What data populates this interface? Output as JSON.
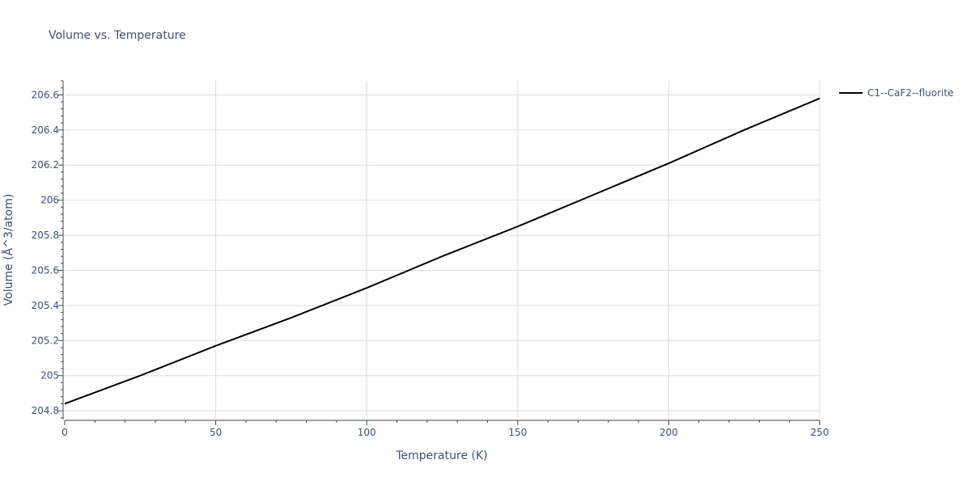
{
  "chart_data": {
    "type": "line",
    "title": "Volume vs. Temperature",
    "xlabel": "Temperature (K)",
    "ylabel": "Volume (Å^3/atom)",
    "xlim": [
      0,
      250
    ],
    "ylim": [
      204.75,
      206.68
    ],
    "x_ticks": [
      0,
      50,
      100,
      150,
      200,
      250
    ],
    "y_ticks": [
      204.8,
      205,
      205.2,
      205.4,
      205.6,
      205.8,
      206,
      206.2,
      206.4,
      206.6
    ],
    "x_tick_labels": [
      "0",
      "50",
      "100",
      "150",
      "200",
      "250"
    ],
    "y_tick_labels": [
      "204.8",
      "205",
      "205.2",
      "205.4",
      "205.6",
      "205.8",
      "206",
      "206.2",
      "206.4",
      "206.6"
    ],
    "grid": true,
    "legend_position": "top-right, outside plot",
    "series": [
      {
        "name": "C1--CaF2--fluorite",
        "color": "#000000",
        "x": [
          0,
          25,
          50,
          75,
          100,
          125,
          150,
          175,
          200,
          225,
          250
        ],
        "y": [
          204.84,
          205.0,
          205.17,
          205.33,
          205.5,
          205.68,
          205.85,
          206.03,
          206.21,
          206.4,
          206.58
        ]
      }
    ]
  }
}
